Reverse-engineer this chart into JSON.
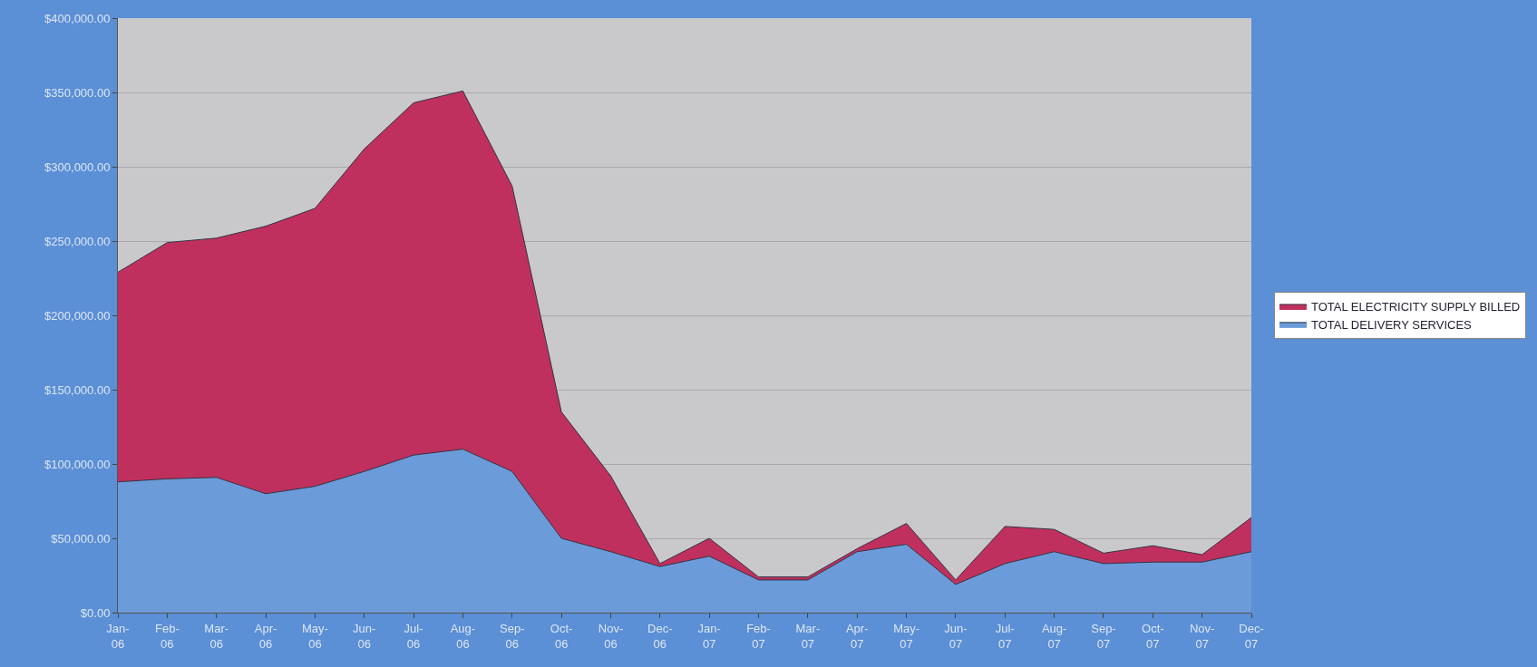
{
  "chart_data": {
    "type": "area",
    "stacked": true,
    "categories": [
      "Jan-06",
      "Feb-06",
      "Mar-06",
      "Apr-06",
      "May-06",
      "Jun-06",
      "Jul-06",
      "Aug-06",
      "Sep-06",
      "Oct-06",
      "Nov-06",
      "Dec-06",
      "Jan-07",
      "Feb-07",
      "Mar-07",
      "Apr-07",
      "May-07",
      "Jun-07",
      "Jul-07",
      "Aug-07",
      "Sep-07",
      "Oct-07",
      "Nov-07",
      "Dec-07"
    ],
    "series": [
      {
        "name": "TOTAL DELIVERY SERVICES",
        "color": "#6b9bd9",
        "values": [
          88000,
          90000,
          91000,
          80000,
          85000,
          95000,
          106000,
          110000,
          95000,
          50000,
          41000,
          31000,
          38000,
          22000,
          22000,
          41000,
          46000,
          19000,
          33000,
          41000,
          33000,
          34000,
          34000,
          41000
        ]
      },
      {
        "name": "TOTAL ELECTRICITY SUPPLY BILLED",
        "color": "#c0305e",
        "values": [
          141000,
          159000,
          161000,
          180000,
          187000,
          217000,
          237000,
          241000,
          192000,
          85000,
          51000,
          2000,
          12000,
          2000,
          2000,
          2000,
          14000,
          3000,
          25000,
          15000,
          7000,
          11000,
          5000,
          23000
        ]
      }
    ],
    "ylim": [
      0,
      400000
    ],
    "yticks": [
      {
        "value": 0,
        "label": "$0.00"
      },
      {
        "value": 50000,
        "label": "$50,000.00"
      },
      {
        "value": 100000,
        "label": "$100,000.00"
      },
      {
        "value": 150000,
        "label": "$150,000.00"
      },
      {
        "value": 200000,
        "label": "$200,000.00"
      },
      {
        "value": 250000,
        "label": "$250,000.00"
      },
      {
        "value": 300000,
        "label": "$300,000.00"
      },
      {
        "value": 350000,
        "label": "$350,000.00"
      },
      {
        "value": 400000,
        "label": "$400,000.00"
      }
    ],
    "grid": "y",
    "legend": "right"
  }
}
